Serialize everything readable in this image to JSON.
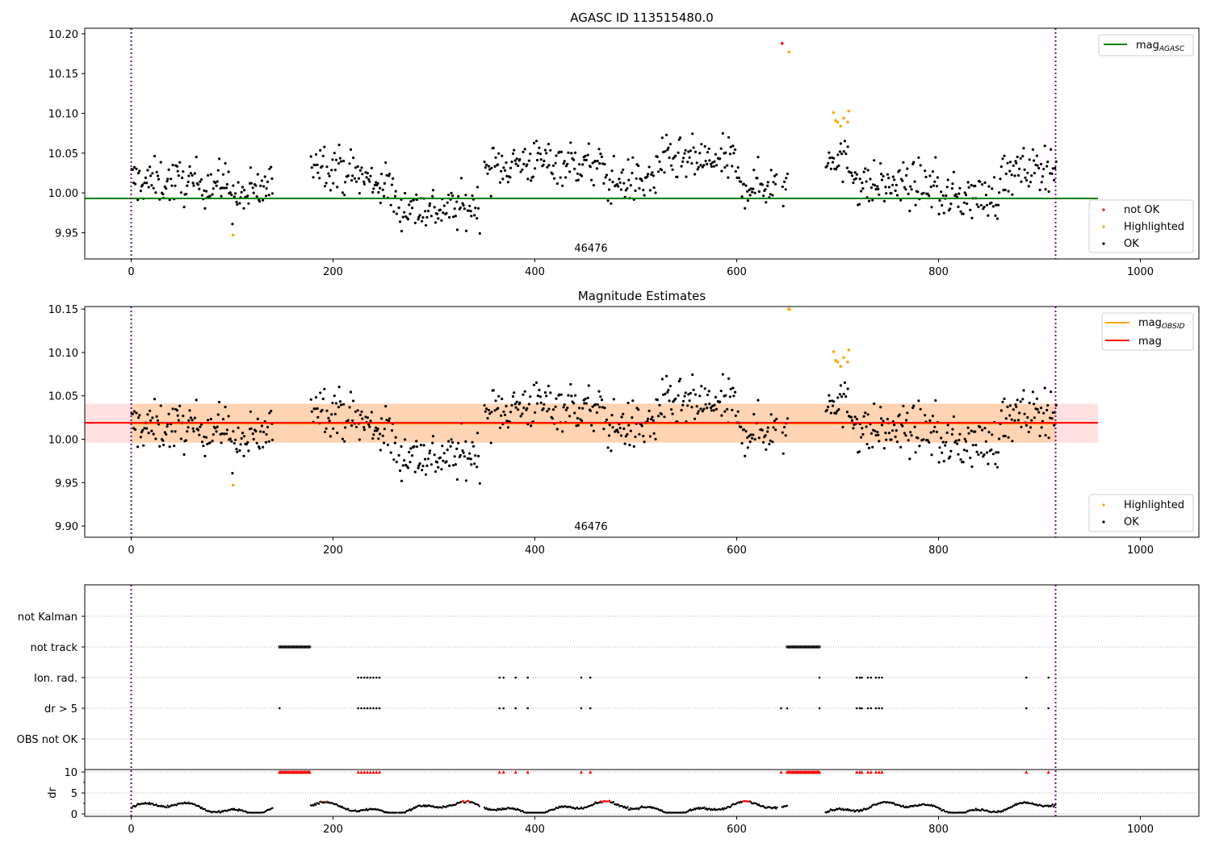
{
  "chart_data": [
    {
      "type": "scatter",
      "title": "AGASC ID 113515480.0",
      "xlabel": "",
      "ylabel": "",
      "xlim": [
        -46,
        1058
      ],
      "ylim": [
        9.917,
        10.207
      ],
      "xticks": [
        0,
        200,
        400,
        600,
        800,
        1000
      ],
      "xtick_labels": [
        "0",
        "200",
        "400",
        "600",
        "800",
        "1000"
      ],
      "yticks": [
        9.95,
        10.0,
        10.05,
        10.1,
        10.15,
        10.2
      ],
      "ytick_labels": [
        "9.95",
        "10.00",
        "10.05",
        "10.10",
        "10.15",
        "10.20"
      ],
      "obsid_boundaries": [
        0,
        916
      ],
      "annotation": "46476",
      "mag_agasc": 9.993,
      "mag_agasc_range": [
        -46,
        958
      ],
      "not_ok_points": [
        [
          645,
          10.188
        ]
      ],
      "highlighted_points": [
        [
          101,
          9.947
        ],
        [
          652,
          10.177
        ],
        [
          696,
          10.101
        ],
        [
          698,
          10.091
        ],
        [
          700,
          10.089
        ],
        [
          703,
          10.084
        ],
        [
          706,
          10.094
        ],
        [
          710,
          10.089
        ],
        [
          711,
          10.103
        ]
      ],
      "legend_upper": [
        {
          "label": "mag",
          "subscript": "AGASC",
          "color": "#008000",
          "kind": "line"
        }
      ],
      "legend_lower": [
        {
          "label": "not OK",
          "color": "#ff0000",
          "kind": "marker"
        },
        {
          "label": "Highlighted",
          "color": "#ffa500",
          "kind": "marker"
        },
        {
          "label": "OK",
          "color": "#000000",
          "kind": "marker"
        }
      ]
    },
    {
      "type": "scatter",
      "title": "Magnitude Estimates",
      "xlabel": "",
      "ylabel": "",
      "xlim": [
        -46,
        1058
      ],
      "ylim": [
        9.887,
        10.153
      ],
      "xticks": [
        0,
        200,
        400,
        600,
        800,
        1000
      ],
      "xtick_labels": [
        "0",
        "200",
        "400",
        "600",
        "800",
        "1000"
      ],
      "yticks": [
        9.9,
        9.95,
        10.0,
        10.05,
        10.1,
        10.15
      ],
      "ytick_labels": [
        "9.90",
        "9.95",
        "10.00",
        "10.05",
        "10.10",
        "10.15"
      ],
      "obsid_boundaries": [
        0,
        916
      ],
      "annotation": "46476",
      "mag": 10.019,
      "mag_band": [
        9.996,
        10.041
      ],
      "mag_range": [
        -46,
        958
      ],
      "mag_obsid": 10.018,
      "mag_obsid_band": [
        9.996,
        10.041
      ],
      "mag_obsid_range": [
        0,
        916
      ],
      "highlighted_points": [
        [
          101,
          9.947
        ],
        [
          652,
          10.149
        ],
        [
          696,
          10.101
        ],
        [
          698,
          10.091
        ],
        [
          700,
          10.089
        ],
        [
          703,
          10.084
        ],
        [
          706,
          10.094
        ],
        [
          710,
          10.089
        ],
        [
          711,
          10.103
        ]
      ],
      "legend_upper": [
        {
          "label": "mag",
          "subscript": "OBSID",
          "color": "#ffa500",
          "kind": "line"
        },
        {
          "label": "mag",
          "subscript": "",
          "color": "#ff0000",
          "kind": "line"
        }
      ],
      "legend_lower": [
        {
          "label": "Highlighted",
          "color": "#ffa500",
          "kind": "marker"
        },
        {
          "label": "OK",
          "color": "#000000",
          "kind": "marker"
        }
      ]
    },
    {
      "type": "scatter",
      "title": "",
      "xlim": [
        -46,
        1058
      ],
      "xticks": [
        0,
        200,
        400,
        600,
        800,
        1000
      ],
      "xtick_labels": [
        "0",
        "200",
        "400",
        "600",
        "800",
        "1000"
      ],
      "flag_categories": [
        "not Kalman",
        "not track",
        "Ion. rad.",
        "dr > 5",
        "OBS not OK"
      ],
      "dr_ylabel": "dr",
      "dr_yticks": [
        0,
        5,
        10
      ],
      "dr_ytick_labels": [
        "0",
        "5",
        "10"
      ],
      "obsid_boundaries": [
        0,
        916
      ],
      "flags": {
        "not track": [
          [
            147,
            177
          ]
        ],
        "Ion. rad.": [
          225,
          228,
          231,
          234,
          237,
          240,
          243,
          246,
          365,
          369,
          381,
          393,
          446,
          455,
          682,
          719,
          722,
          724,
          730,
          733,
          738,
          741,
          744,
          887,
          909
        ],
        "dr > 5": [
          147,
          225,
          228,
          231,
          234,
          237,
          240,
          243,
          246,
          365,
          369,
          381,
          393,
          446,
          455,
          644,
          650,
          682,
          719,
          722,
          724,
          730,
          733,
          738,
          741,
          744,
          887,
          909
        ]
      },
      "not_track_range": [
        [
          650,
          682
        ]
      ],
      "dr_clipped": 10
    }
  ],
  "seed": {
    "segments": [
      [
        0,
        140
      ],
      [
        178,
        263
      ],
      [
        265,
        345
      ],
      [
        350,
        640
      ],
      [
        645,
        650
      ],
      [
        688,
        916
      ]
    ]
  }
}
